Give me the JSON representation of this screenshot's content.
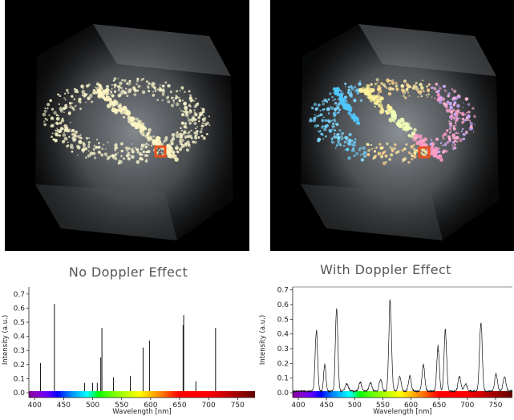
{
  "panels": [
    {
      "id": "left",
      "caption": "No Doppler Effect"
    },
    {
      "id": "right",
      "caption": "With Doppler Effect"
    }
  ],
  "chart_data": [
    {
      "type": "bar",
      "title": "No Doppler Effect",
      "xlabel": "Wavelength [nm]",
      "ylabel": "Intensity (a.u.)",
      "xlim": [
        390,
        780
      ],
      "ylim": [
        0,
        0.75
      ],
      "xticks": [
        400,
        450,
        500,
        550,
        600,
        650,
        700,
        750
      ],
      "yticks": [
        0.0,
        0.1,
        0.2,
        0.3,
        0.4,
        0.5,
        0.6,
        0.7
      ],
      "grid": false,
      "lines": [
        {
          "x": 410,
          "y": 0.21
        },
        {
          "x": 434,
          "y": 0.63
        },
        {
          "x": 486,
          "y": 0.07
        },
        {
          "x": 500,
          "y": 0.07
        },
        {
          "x": 508,
          "y": 0.07
        },
        {
          "x": 514,
          "y": 0.25
        },
        {
          "x": 516,
          "y": 0.46
        },
        {
          "x": 536,
          "y": 0.11
        },
        {
          "x": 565,
          "y": 0.12
        },
        {
          "x": 587,
          "y": 0.32
        },
        {
          "x": 598,
          "y": 0.37
        },
        {
          "x": 656,
          "y": 0.48
        },
        {
          "x": 657,
          "y": 0.55
        },
        {
          "x": 678,
          "y": 0.08
        },
        {
          "x": 712,
          "y": 0.46
        }
      ]
    },
    {
      "type": "line",
      "title": "With Doppler Effect",
      "xlabel": "Wavelength [nm]",
      "ylabel": "Intensity (a.u.)",
      "xlim": [
        390,
        780
      ],
      "ylim": [
        0,
        0.72
      ],
      "xticks": [
        400,
        450,
        500,
        550,
        600,
        650,
        700,
        750
      ],
      "yticks": [
        0.0,
        0.1,
        0.2,
        0.3,
        0.4,
        0.5,
        0.6,
        0.7
      ],
      "grid": false,
      "peaks": [
        {
          "center": 432,
          "height": 0.42,
          "width": 2.2
        },
        {
          "center": 447,
          "height": 0.18,
          "width": 2.0
        },
        {
          "center": 468,
          "height": 0.57,
          "width": 2.2
        },
        {
          "center": 486,
          "height": 0.05,
          "width": 3.0
        },
        {
          "center": 510,
          "height": 0.06,
          "width": 2.5
        },
        {
          "center": 528,
          "height": 0.06,
          "width": 2.5
        },
        {
          "center": 546,
          "height": 0.08,
          "width": 2.5
        },
        {
          "center": 563,
          "height": 0.6,
          "width": 2.4
        },
        {
          "center": 580,
          "height": 0.1,
          "width": 2.5
        },
        {
          "center": 598,
          "height": 0.1,
          "width": 2.5
        },
        {
          "center": 622,
          "height": 0.18,
          "width": 2.4
        },
        {
          "center": 648,
          "height": 0.3,
          "width": 2.2
        },
        {
          "center": 661,
          "height": 0.4,
          "width": 2.3
        },
        {
          "center": 686,
          "height": 0.1,
          "width": 2.5
        },
        {
          "center": 697,
          "height": 0.05,
          "width": 2.5
        },
        {
          "center": 724,
          "height": 0.48,
          "width": 2.4
        },
        {
          "center": 751,
          "height": 0.12,
          "width": 2.5
        },
        {
          "center": 766,
          "height": 0.1,
          "width": 2.5
        }
      ],
      "baseline": 0.01
    }
  ]
}
